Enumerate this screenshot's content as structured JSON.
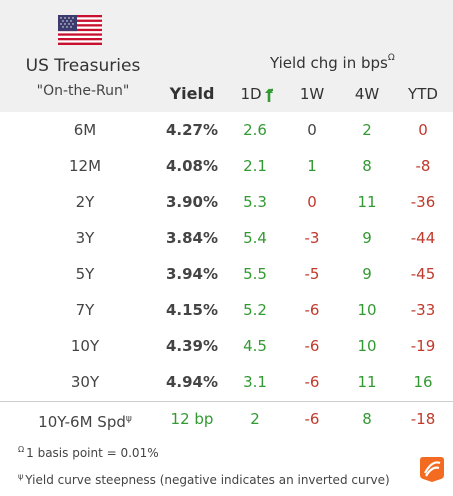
{
  "header": {
    "flag_icon": "us-flag-icon",
    "title": "US Treasuries",
    "subtitle": "\"On-the-Run\"",
    "yield_label": "Yield",
    "chg_label": "Yield chg in bps",
    "chg_mark": "Ω",
    "columns": [
      "1D",
      "1W",
      "4W",
      "YTD"
    ]
  },
  "rows": [
    {
      "label": "6M",
      "yield": "4.27%",
      "d1": "2.6",
      "w1": "0",
      "w4": "2",
      "ytd": "0"
    },
    {
      "label": "12M",
      "yield": "4.08%",
      "d1": "2.1",
      "w1": "1",
      "w4": "8",
      "ytd": "-8"
    },
    {
      "label": "2Y",
      "yield": "3.90%",
      "d1": "5.3",
      "w1": "0",
      "w4": "11",
      "ytd": "-36"
    },
    {
      "label": "3Y",
      "yield": "3.84%",
      "d1": "5.4",
      "w1": "-3",
      "w4": "9",
      "ytd": "-44"
    },
    {
      "label": "5Y",
      "yield": "3.94%",
      "d1": "5.5",
      "w1": "-5",
      "w4": "9",
      "ytd": "-45"
    },
    {
      "label": "7Y",
      "yield": "4.15%",
      "d1": "5.2",
      "w1": "-6",
      "w4": "10",
      "ytd": "-33"
    },
    {
      "label": "10Y",
      "yield": "4.39%",
      "d1": "4.5",
      "w1": "-6",
      "w4": "10",
      "ytd": "-19"
    },
    {
      "label": "30Y",
      "yield": "4.94%",
      "d1": "3.1",
      "w1": "-6",
      "w4": "11",
      "ytd": "16"
    }
  ],
  "spread": {
    "label": "10Y-6M Spd",
    "mark": "ψ",
    "yield": "12 bp",
    "d1": "2",
    "w1": "-6",
    "w4": "8",
    "ytd": "-18"
  },
  "footnotes": [
    {
      "mark": "Ω",
      "text": "1 basis point = 0.01%"
    },
    {
      "mark": "ψ",
      "text": "Yield curve steepness (negative indicates an inverted curve)"
    }
  ],
  "colors": {
    "positive": "#339933",
    "negative": "#c0392b",
    "header_bg": "#f0f0f0",
    "logo": "#f26b21"
  },
  "logo_icon": "brand-logo-icon"
}
